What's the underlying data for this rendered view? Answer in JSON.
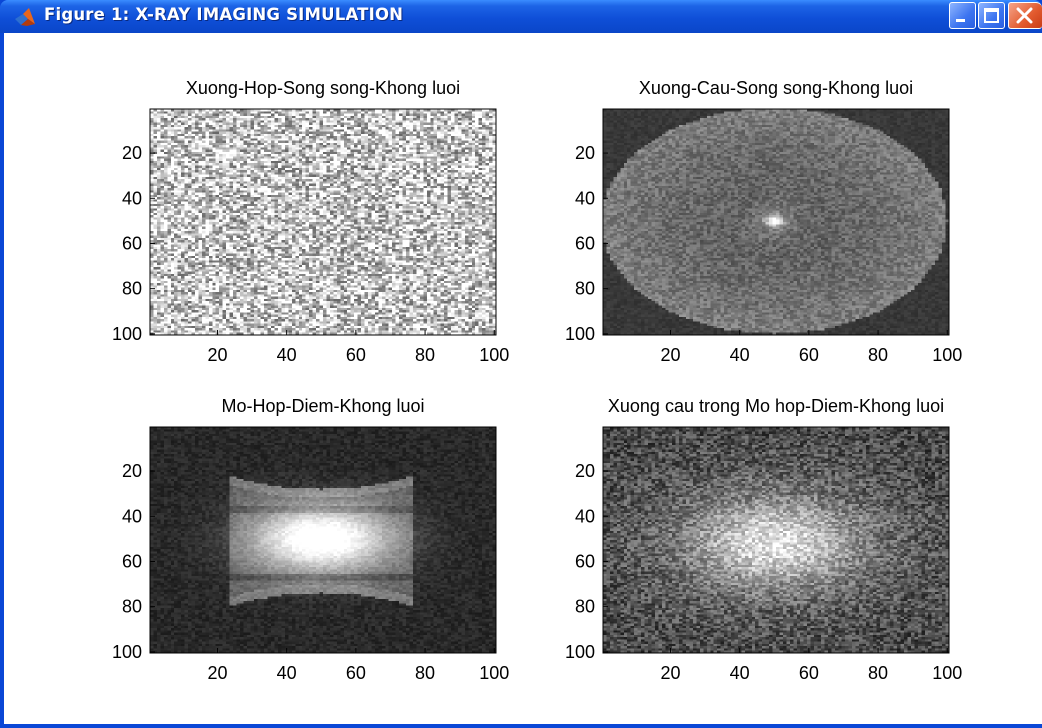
{
  "window": {
    "title": "Figure 1: X-RAY IMAGING SIMULATION",
    "icon": "matlab-icon",
    "controls": [
      "minimize-icon",
      "maximize-icon",
      "close-icon"
    ]
  },
  "chart_data": [
    {
      "type": "heatmap",
      "title": "Xuong-Hop-Song song-Khong luoi",
      "xlabel": "",
      "ylabel": "",
      "xlim": [
        1,
        100
      ],
      "ylim": [
        100,
        1
      ],
      "x_ticks": [
        20,
        40,
        60,
        80,
        100
      ],
      "y_ticks": [
        20,
        40,
        60,
        80,
        100
      ],
      "colormap": "gray",
      "pattern": "uniform-noise",
      "params": {
        "base": 0.78,
        "noise": 0.42
      }
    },
    {
      "type": "heatmap",
      "title": "Xuong-Cau-Song song-Khong luoi",
      "xlabel": "",
      "ylabel": "",
      "xlim": [
        1,
        100
      ],
      "ylim": [
        100,
        1
      ],
      "x_ticks": [
        20,
        40,
        60,
        80,
        100
      ],
      "y_ticks": [
        20,
        40,
        60,
        80,
        100
      ],
      "colormap": "gray",
      "pattern": "sphere-disk",
      "params": {
        "cx": 50,
        "cy": 50,
        "rx": 50,
        "ry": 50,
        "bright_center": [
          50,
          50
        ]
      }
    },
    {
      "type": "heatmap",
      "title": "Mo-Hop-Diem-Khong luoi",
      "xlabel": "",
      "ylabel": "",
      "xlim": [
        1,
        100
      ],
      "ylim": [
        100,
        1
      ],
      "x_ticks": [
        20,
        40,
        60,
        80,
        100
      ],
      "y_ticks": [
        20,
        40,
        60,
        80,
        100
      ],
      "colormap": "gray",
      "pattern": "box-glow",
      "params": {
        "cx": 50,
        "cy": 50,
        "x_range": [
          23,
          77
        ],
        "y_range": [
          22,
          80
        ]
      }
    },
    {
      "type": "heatmap",
      "title": "Xuong cau trong Mo hop-Diem-Khong luoi",
      "xlabel": "",
      "ylabel": "",
      "xlim": [
        1,
        100
      ],
      "ylim": [
        100,
        1
      ],
      "x_ticks": [
        20,
        40,
        60,
        80,
        100
      ],
      "y_ticks": [
        20,
        40,
        60,
        80,
        100
      ],
      "colormap": "gray",
      "pattern": "soft-blob",
      "params": {
        "cx": 50,
        "cy": 52
      }
    }
  ]
}
